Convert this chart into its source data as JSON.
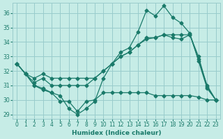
{
  "xlabel": "Humidex (Indice chaleur)",
  "xlim": [
    -0.5,
    23.5
  ],
  "ylim": [
    28.7,
    36.7
  ],
  "yticks": [
    29,
    30,
    31,
    32,
    33,
    34,
    35,
    36
  ],
  "xticks": [
    0,
    1,
    2,
    3,
    4,
    5,
    6,
    7,
    8,
    9,
    10,
    11,
    12,
    13,
    14,
    15,
    16,
    17,
    18,
    19,
    20,
    21,
    22,
    23
  ],
  "bg_color": "#c6ece6",
  "grid_color": "#99cccc",
  "line_color": "#1a7a6a",
  "lines": [
    {
      "x": [
        0,
        1,
        2,
        3,
        4,
        5,
        6,
        7,
        8,
        9,
        10,
        11,
        12,
        13,
        14,
        15,
        16,
        17,
        18,
        19,
        20,
        21,
        22,
        23
      ],
      "y": [
        32.5,
        31.8,
        31.0,
        30.8,
        30.5,
        30.3,
        29.4,
        29.0,
        29.4,
        29.9,
        31.5,
        32.5,
        33.3,
        33.6,
        34.7,
        36.2,
        35.8,
        36.5,
        35.7,
        35.3,
        34.6,
        32.7,
        30.8,
        30.0
      ],
      "marker": "D",
      "markersize": 2.5
    },
    {
      "x": [
        0,
        1,
        2,
        3,
        4,
        5,
        6,
        7,
        8,
        9,
        10,
        11,
        12,
        13,
        14,
        15,
        16,
        17,
        18,
        19,
        20,
        21,
        22,
        23
      ],
      "y": [
        32.5,
        31.8,
        31.5,
        31.8,
        31.5,
        31.5,
        31.5,
        31.5,
        31.5,
        31.5,
        32.0,
        32.5,
        33.0,
        33.3,
        33.8,
        34.3,
        34.3,
        34.5,
        34.5,
        34.5,
        34.5,
        33.0,
        30.9,
        30.0
      ],
      "marker": "D",
      "markersize": 2.5
    },
    {
      "x": [
        0,
        1,
        2,
        3,
        4,
        5,
        6,
        7,
        8,
        9,
        10,
        11,
        12,
        13,
        14,
        15,
        16,
        17,
        18,
        19,
        20,
        21,
        22,
        23
      ],
      "y": [
        32.5,
        31.8,
        31.2,
        31.5,
        31.0,
        31.0,
        31.0,
        31.0,
        31.0,
        31.5,
        32.0,
        32.5,
        33.0,
        33.3,
        33.8,
        34.2,
        34.3,
        34.5,
        34.3,
        34.2,
        34.5,
        32.8,
        31.0,
        30.0
      ],
      "marker": "D",
      "markersize": 2.5
    },
    {
      "x": [
        0,
        1,
        2,
        3,
        4,
        5,
        6,
        7,
        8,
        9,
        10,
        11,
        12,
        13,
        14,
        15,
        16,
        17,
        18,
        19,
        20,
        21,
        22,
        23
      ],
      "y": [
        32.5,
        31.8,
        31.0,
        30.7,
        30.5,
        29.9,
        29.9,
        29.2,
        29.9,
        30.0,
        30.5,
        30.5,
        30.5,
        30.5,
        30.5,
        30.5,
        30.3,
        30.3,
        30.3,
        30.3,
        30.3,
        30.2,
        30.0,
        30.0
      ],
      "marker": "D",
      "markersize": 2.5
    }
  ]
}
